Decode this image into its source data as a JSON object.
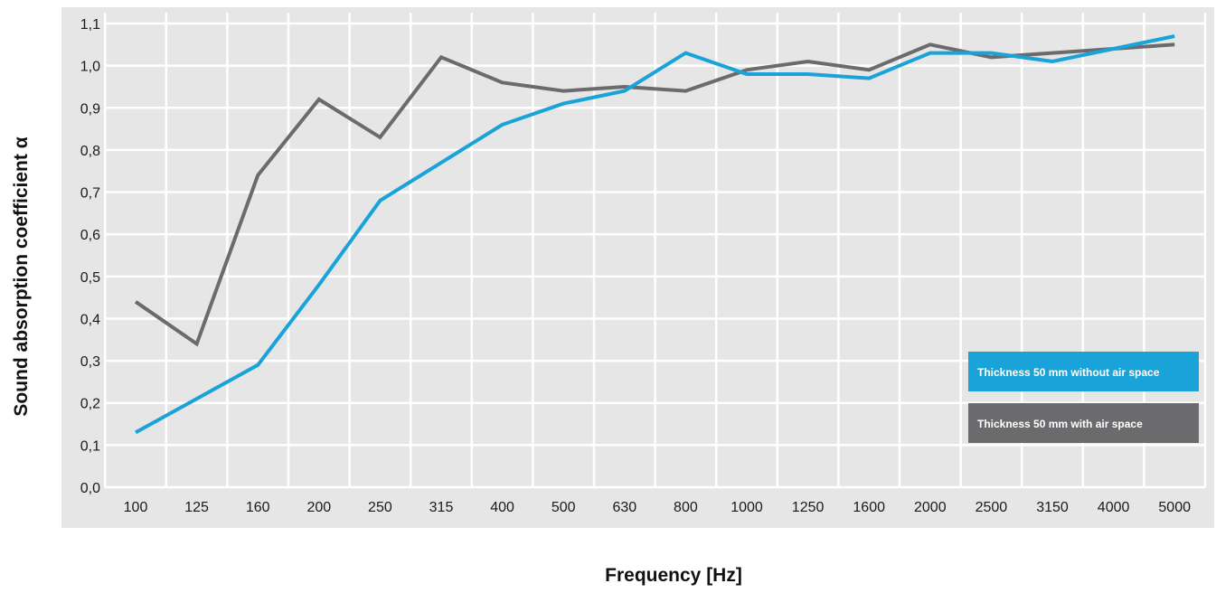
{
  "chart_data": {
    "type": "line",
    "xlabel": "Frequency [Hz]",
    "ylabel": "Sound absorption coefficient α",
    "categories": [
      "100",
      "125",
      "160",
      "200",
      "250",
      "315",
      "400",
      "500",
      "630",
      "800",
      "1000",
      "1250",
      "1600",
      "2000",
      "2500",
      "3150",
      "4000",
      "5000"
    ],
    "y_ticks": [
      "0,0",
      "0,1",
      "0,2",
      "0,3",
      "0,4",
      "0,5",
      "0,6",
      "0,7",
      "0,8",
      "0,9",
      "1,0",
      "1,1"
    ],
    "ylim": [
      0,
      1.1
    ],
    "grid": true,
    "legend_position": "bottom-right",
    "background_color": "#e6e6e6",
    "series": [
      {
        "name": "Thickness 50 mm without air space",
        "color": "#1aa3d9",
        "values": [
          0.13,
          0.21,
          0.29,
          0.48,
          0.68,
          0.77,
          0.86,
          0.91,
          0.94,
          1.03,
          0.98,
          0.98,
          0.97,
          1.03,
          1.03,
          1.01,
          1.04,
          1.07
        ]
      },
      {
        "name": "Thickness 50 mm with air space",
        "color": "#6b6b6d",
        "values": [
          0.44,
          0.34,
          0.74,
          0.92,
          0.83,
          1.02,
          0.96,
          0.94,
          0.95,
          0.94,
          0.99,
          1.01,
          0.99,
          1.05,
          1.02,
          1.03,
          1.04,
          1.05
        ]
      }
    ]
  }
}
